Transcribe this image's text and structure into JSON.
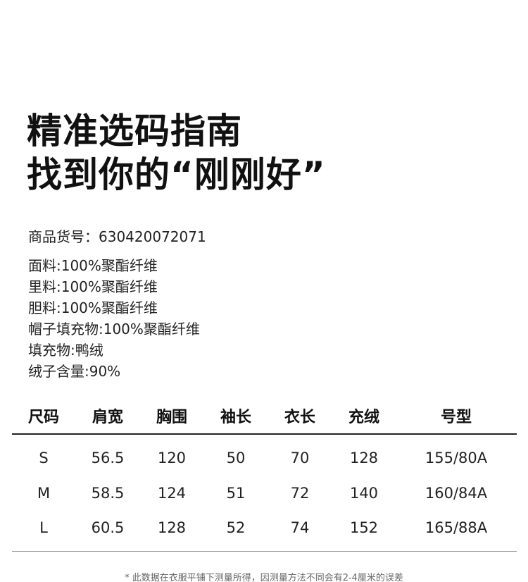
{
  "title": {
    "line1": "精准选码指南",
    "line2": "找到你的“刚刚好”"
  },
  "product_no": "商品货号：630420072071",
  "materials": [
    "面料:100%聚酯纤维",
    "里料:100%聚酯纤维",
    "胆料:100%聚酯纤维",
    "帽子填充物:100%聚酯纤维",
    "填充物:鸭绒",
    "绒子含量:90%"
  ],
  "table": {
    "headers": [
      "尺码",
      "肩宽",
      "胸围",
      "袖长",
      "衣长",
      "充绒",
      "号型"
    ],
    "rows": [
      [
        "S",
        "56.5",
        "120",
        "50",
        "70",
        "128",
        "155/80A"
      ],
      [
        "M",
        "58.5",
        "124",
        "51",
        "72",
        "140",
        "160/84A"
      ],
      [
        "L",
        "60.5",
        "128",
        "52",
        "74",
        "152",
        "165/88A"
      ]
    ]
  },
  "footnote": "* 此数据在衣服平铺下测量所得，因测量方法不同会有2-4厘米的误差"
}
